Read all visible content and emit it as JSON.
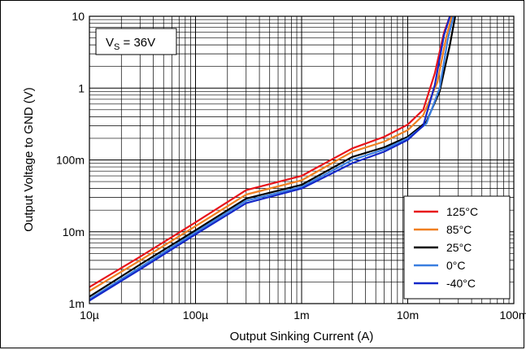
{
  "chart_data": {
    "type": "line",
    "title": "",
    "annotation": {
      "main": "V",
      "sub": "S",
      "rest": " = 36V"
    },
    "xlabel": "Output Sinking Current (A)",
    "ylabel": "Output Voltage to GND (V)",
    "x_scale": "log",
    "y_scale": "log",
    "xlim": [
      1e-05,
      0.1
    ],
    "ylim": [
      0.001,
      10
    ],
    "x_ticks": [
      {
        "value": 1e-05,
        "label": "10µ"
      },
      {
        "value": 0.0001,
        "label": "100µ"
      },
      {
        "value": 0.001,
        "label": "1m"
      },
      {
        "value": 0.01,
        "label": "10m"
      },
      {
        "value": 0.1,
        "label": "100m"
      }
    ],
    "y_ticks": [
      {
        "value": 0.001,
        "label": "1m"
      },
      {
        "value": 0.01,
        "label": "10m"
      },
      {
        "value": 0.1,
        "label": "100m"
      },
      {
        "value": 1,
        "label": "1"
      },
      {
        "value": 10,
        "label": "10"
      }
    ],
    "grid": true,
    "legend_position": "bottom-right",
    "series": [
      {
        "name": "125°C",
        "color": "#e8141b",
        "x": [
          1e-05,
          3e-05,
          0.0001,
          0.0003,
          0.001,
          0.003,
          0.006,
          0.01,
          0.014,
          0.018,
          0.022,
          0.025
        ],
        "y": [
          0.0017,
          0.0045,
          0.0135,
          0.038,
          0.06,
          0.145,
          0.21,
          0.31,
          0.5,
          1.6,
          6.0,
          10
        ]
      },
      {
        "name": "85°C",
        "color": "#f07f20",
        "x": [
          1e-05,
          3e-05,
          0.0001,
          0.0003,
          0.001,
          0.003,
          0.006,
          0.01,
          0.014,
          0.019,
          0.023,
          0.026
        ],
        "y": [
          0.0015,
          0.004,
          0.012,
          0.033,
          0.052,
          0.13,
          0.18,
          0.26,
          0.42,
          1.2,
          5.0,
          10
        ]
      },
      {
        "name": "25°C",
        "color": "#000000",
        "x": [
          1e-05,
          3e-05,
          0.0001,
          0.0003,
          0.001,
          0.003,
          0.006,
          0.01,
          0.015,
          0.02,
          0.025,
          0.028
        ],
        "y": [
          0.00125,
          0.0035,
          0.0105,
          0.029,
          0.045,
          0.11,
          0.15,
          0.21,
          0.34,
          0.9,
          4.0,
          10
        ]
      },
      {
        "name": "0°C",
        "color": "#3a7fe0",
        "x": [
          1e-05,
          3e-05,
          0.0001,
          0.0003,
          0.001,
          0.003,
          0.006,
          0.01,
          0.015,
          0.02,
          0.024,
          0.027
        ],
        "y": [
          0.00115,
          0.0032,
          0.0098,
          0.027,
          0.042,
          0.1,
          0.14,
          0.2,
          0.32,
          1.0,
          5.0,
          10
        ]
      },
      {
        "name": "-40°C",
        "color": "#1428c8",
        "x": [
          1e-05,
          3e-05,
          0.0001,
          0.0003,
          0.001,
          0.003,
          0.006,
          0.01,
          0.014,
          0.018,
          0.022,
          0.025
        ],
        "y": [
          0.0011,
          0.003,
          0.0092,
          0.025,
          0.04,
          0.09,
          0.13,
          0.19,
          0.3,
          1.1,
          5.5,
          10
        ]
      }
    ]
  }
}
